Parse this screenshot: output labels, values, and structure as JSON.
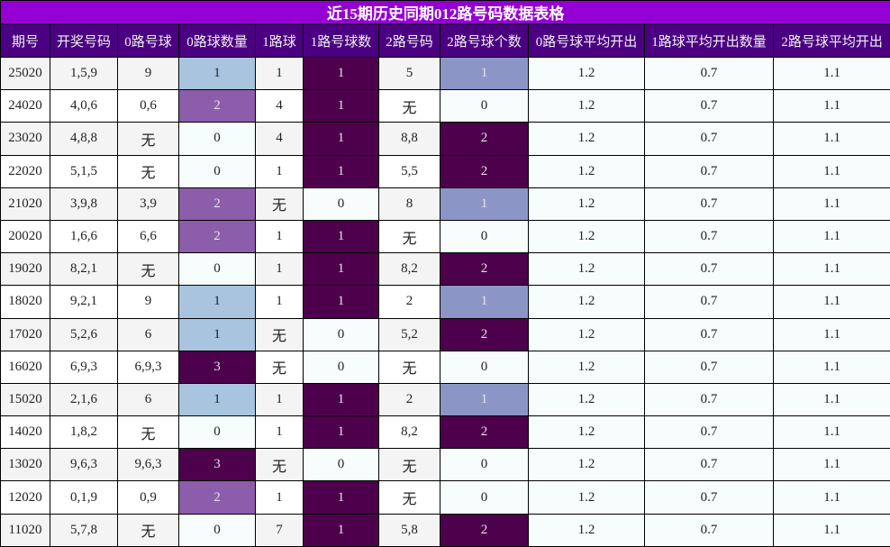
{
  "title": "近15期历史同期012路号码数据表格",
  "headers": [
    "期号",
    "开奖号码",
    "0路号球",
    "0路球数量",
    "1路球",
    "1路号球数",
    "2路号码",
    "2路号球个数",
    "0路号球平均开出",
    "1路球平均开出数量",
    "2路号球平均开出"
  ],
  "rows": [
    [
      "25020",
      "1,5,9",
      "9",
      "1",
      "1",
      "1",
      "5",
      "1",
      "1.2",
      "0.7",
      "1.1"
    ],
    [
      "24020",
      "4,0,6",
      "0,6",
      "2",
      "4",
      "1",
      "无",
      "0",
      "1.2",
      "0.7",
      "1.1"
    ],
    [
      "23020",
      "4,8,8",
      "无",
      "0",
      "4",
      "1",
      "8,8",
      "2",
      "1.2",
      "0.7",
      "1.1"
    ],
    [
      "22020",
      "5,1,5",
      "无",
      "0",
      "1",
      "1",
      "5,5",
      "2",
      "1.2",
      "0.7",
      "1.1"
    ],
    [
      "21020",
      "3,9,8",
      "3,9",
      "2",
      "无",
      "0",
      "8",
      "1",
      "1.2",
      "0.7",
      "1.1"
    ],
    [
      "20020",
      "1,6,6",
      "6,6",
      "2",
      "1",
      "1",
      "无",
      "0",
      "1.2",
      "0.7",
      "1.1"
    ],
    [
      "19020",
      "8,2,1",
      "无",
      "0",
      "1",
      "1",
      "8,2",
      "2",
      "1.2",
      "0.7",
      "1.1"
    ],
    [
      "18020",
      "9,2,1",
      "9",
      "1",
      "1",
      "1",
      "2",
      "1",
      "1.2",
      "0.7",
      "1.1"
    ],
    [
      "17020",
      "5,2,6",
      "6",
      "1",
      "无",
      "0",
      "5,2",
      "2",
      "1.2",
      "0.7",
      "1.1"
    ],
    [
      "16020",
      "6,9,3",
      "6,9,3",
      "3",
      "无",
      "0",
      "无",
      "0",
      "1.2",
      "0.7",
      "1.1"
    ],
    [
      "15020",
      "2,1,6",
      "6",
      "1",
      "1",
      "1",
      "2",
      "1",
      "1.2",
      "0.7",
      "1.1"
    ],
    [
      "14020",
      "1,8,2",
      "无",
      "0",
      "1",
      "1",
      "8,2",
      "2",
      "1.2",
      "0.7",
      "1.1"
    ],
    [
      "13020",
      "9,6,3",
      "9,6,3",
      "3",
      "无",
      "0",
      "无",
      "0",
      "1.2",
      "0.7",
      "1.1"
    ],
    [
      "12020",
      "0,1,9",
      "0,9",
      "2",
      "1",
      "1",
      "无",
      "0",
      "1.2",
      "0.7",
      "1.1"
    ],
    [
      "11020",
      "5,7,8",
      "无",
      "0",
      "7",
      "1",
      "5,8",
      "2",
      "1.2",
      "0.7",
      "1.1"
    ]
  ],
  "colors": {
    "title_bg": "#9400D3",
    "header_bg": "#4B0082",
    "count_0路": {
      "0": "#F7FCFD",
      "1": "#A9C4DE",
      "2": "#8C5DAA",
      "3": "#4D004B"
    },
    "count_1路": {
      "0": "#F7FCFD",
      "1": "#4D004B"
    },
    "count_2路": {
      "0": "#F7FCFD",
      "1": "#8C96C6",
      "2": "#4D004B"
    },
    "average_bg": "#F7FCFD"
  }
}
